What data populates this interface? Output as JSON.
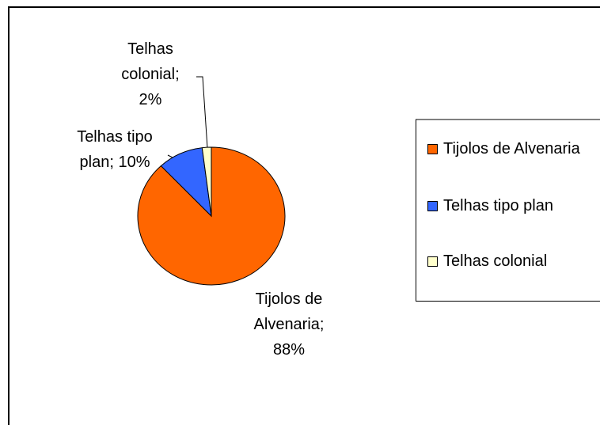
{
  "chart_data": {
    "type": "pie",
    "categories": [
      "Tijolos de Alvenaria",
      "Telhas tipo plan",
      "Telhas colonial"
    ],
    "values": [
      88,
      10,
      2
    ],
    "value_labels": [
      "Tijolos de Alvenaria; 88%",
      "Telhas tipo plan; 10%",
      "Telhas colonial; 2%"
    ],
    "colors": [
      "#ff6600",
      "#3366ff",
      "#ffffcc"
    ],
    "legend": "right"
  }
}
